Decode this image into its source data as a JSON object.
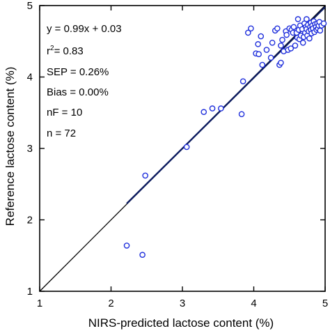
{
  "chart_data": {
    "type": "scatter",
    "xlabel": "NIRS-predicted lactose content (%)",
    "ylabel": "Reference lactose content (%)",
    "xlim": [
      1,
      5
    ],
    "ylim": [
      1,
      5
    ],
    "xticks": [
      "1",
      "2",
      "3",
      "4",
      "5"
    ],
    "yticks": [
      "1",
      "2",
      "3",
      "4",
      "5"
    ],
    "grid": false,
    "annotations": {
      "equation": "y = 0.99x + 0.03",
      "r2_prefix": "r",
      "r2_sup": "2",
      "r2_suffix": "= 0.83",
      "sep": "SEP = 0.26%",
      "bias": "Bias = 0.00%",
      "nf": "nF = 10",
      "n": "n = 72"
    },
    "regression_line": {
      "slope": 0.99,
      "intercept": 0.03,
      "x_range": [
        2.22,
        5.0
      ]
    },
    "identity_line": {
      "x_range": [
        1,
        5
      ]
    },
    "marker_color": "#1f2fdc",
    "regression_color": "#0b1a5e",
    "points": [
      [
        2.22,
        1.64
      ],
      [
        2.44,
        1.51
      ],
      [
        2.48,
        2.62
      ],
      [
        3.06,
        3.02
      ],
      [
        3.3,
        3.51
      ],
      [
        3.42,
        3.56
      ],
      [
        3.54,
        3.56
      ],
      [
        3.83,
        3.48
      ],
      [
        3.85,
        3.94
      ],
      [
        3.92,
        4.62
      ],
      [
        3.96,
        4.68
      ],
      [
        4.03,
        4.33
      ],
      [
        4.06,
        4.46
      ],
      [
        4.07,
        4.32
      ],
      [
        4.1,
        4.57
      ],
      [
        4.12,
        4.17
      ],
      [
        4.18,
        4.38
      ],
      [
        4.24,
        4.27
      ],
      [
        4.26,
        4.48
      ],
      [
        4.3,
        4.65
      ],
      [
        4.33,
        4.68
      ],
      [
        4.36,
        4.17
      ],
      [
        4.38,
        4.2
      ],
      [
        4.38,
        4.44
      ],
      [
        4.4,
        4.52
      ],
      [
        4.42,
        4.36
      ],
      [
        4.45,
        4.64
      ],
      [
        4.46,
        4.59
      ],
      [
        4.48,
        4.38
      ],
      [
        4.5,
        4.68
      ],
      [
        4.52,
        4.4
      ],
      [
        4.53,
        4.66
      ],
      [
        4.55,
        4.62
      ],
      [
        4.56,
        4.7
      ],
      [
        4.58,
        4.44
      ],
      [
        4.6,
        4.62
      ],
      [
        4.61,
        4.55
      ],
      [
        4.62,
        4.81
      ],
      [
        4.63,
        4.66
      ],
      [
        4.64,
        4.53
      ],
      [
        4.65,
        4.72
      ],
      [
        4.66,
        4.58
      ],
      [
        4.68,
        4.67
      ],
      [
        4.69,
        4.48
      ],
      [
        4.7,
        4.56
      ],
      [
        4.71,
        4.75
      ],
      [
        4.72,
        4.62
      ],
      [
        4.73,
        4.7
      ],
      [
        4.74,
        4.67
      ],
      [
        4.74,
        4.81
      ],
      [
        4.75,
        4.58
      ],
      [
        4.76,
        4.73
      ],
      [
        4.77,
        4.64
      ],
      [
        4.78,
        4.54
      ],
      [
        4.79,
        4.7
      ],
      [
        4.8,
        4.66
      ],
      [
        4.8,
        4.76
      ],
      [
        4.81,
        4.61
      ],
      [
        4.82,
        4.72
      ],
      [
        4.83,
        4.68
      ],
      [
        4.84,
        4.78
      ],
      [
        4.85,
        4.63
      ],
      [
        4.86,
        4.74
      ],
      [
        4.87,
        4.7
      ],
      [
        4.88,
        4.66
      ],
      [
        4.89,
        4.75
      ],
      [
        4.9,
        4.68
      ],
      [
        4.91,
        4.72
      ],
      [
        4.92,
        4.77
      ],
      [
        4.93,
        4.65
      ],
      [
        4.95,
        4.72
      ],
      [
        4.98,
        4.75
      ]
    ]
  }
}
